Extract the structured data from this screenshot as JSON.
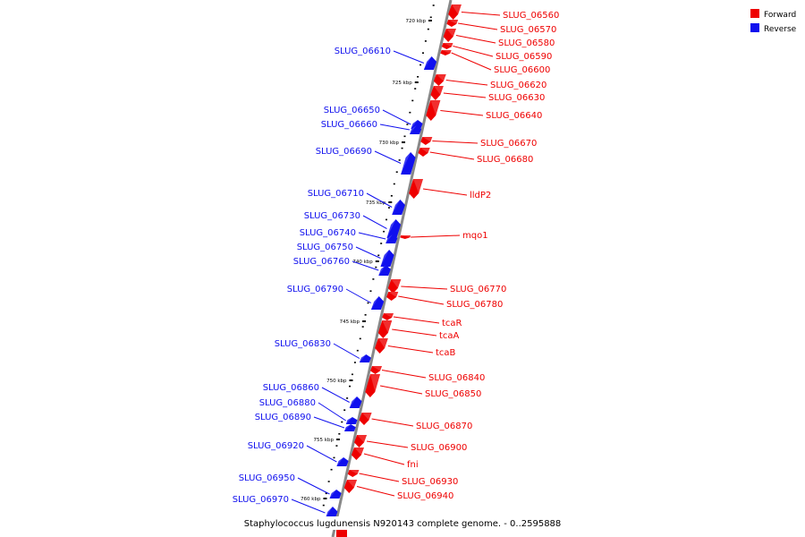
{
  "legend": [
    {
      "label": "Forward",
      "color": "#ee0000"
    },
    {
      "label": "Reverse",
      "color": "#1010ee"
    }
  ],
  "caption": "Staphylococcus lugdunensis N920143 complete genome. - 0..2595888",
  "colors": {
    "forward": "#ee0000",
    "reverse": "#1010ee",
    "backbone": "#888888"
  },
  "ticks": [
    "720 kbp",
    "725 kbp",
    "730 kbp",
    "735 kbp",
    "740 kbp",
    "745 kbp",
    "750 kbp",
    "755 kbp",
    "760 kbp"
  ],
  "genes": [
    {
      "name": "SLUG_06560",
      "strand": "forward"
    },
    {
      "name": "SLUG_06570",
      "strand": "forward"
    },
    {
      "name": "SLUG_06580",
      "strand": "forward"
    },
    {
      "name": "SLUG_06590",
      "strand": "forward"
    },
    {
      "name": "SLUG_06600",
      "strand": "forward"
    },
    {
      "name": "SLUG_06610",
      "strand": "reverse"
    },
    {
      "name": "SLUG_06620",
      "strand": "forward"
    },
    {
      "name": "SLUG_06630",
      "strand": "forward"
    },
    {
      "name": "SLUG_06640",
      "strand": "forward"
    },
    {
      "name": "SLUG_06650",
      "strand": "reverse"
    },
    {
      "name": "SLUG_06660",
      "strand": "reverse"
    },
    {
      "name": "SLUG_06670",
      "strand": "forward"
    },
    {
      "name": "SLUG_06680",
      "strand": "forward"
    },
    {
      "name": "SLUG_06690",
      "strand": "reverse"
    },
    {
      "name": "lldP2",
      "strand": "forward"
    },
    {
      "name": "SLUG_06710",
      "strand": "reverse"
    },
    {
      "name": "SLUG_06730",
      "strand": "reverse"
    },
    {
      "name": "mqo1",
      "strand": "forward"
    },
    {
      "name": "SLUG_06740",
      "strand": "reverse"
    },
    {
      "name": "SLUG_06750",
      "strand": "reverse"
    },
    {
      "name": "SLUG_06760",
      "strand": "reverse"
    },
    {
      "name": "SLUG_06770",
      "strand": "forward"
    },
    {
      "name": "SLUG_06790",
      "strand": "reverse"
    },
    {
      "name": "SLUG_06780",
      "strand": "forward"
    },
    {
      "name": "tcaR",
      "strand": "forward"
    },
    {
      "name": "tcaA",
      "strand": "forward"
    },
    {
      "name": "SLUG_06830",
      "strand": "reverse"
    },
    {
      "name": "tcaB",
      "strand": "forward"
    },
    {
      "name": "SLUG_06840",
      "strand": "forward"
    },
    {
      "name": "SLUG_06860",
      "strand": "reverse"
    },
    {
      "name": "SLUG_06850",
      "strand": "forward"
    },
    {
      "name": "SLUG_06880",
      "strand": "reverse"
    },
    {
      "name": "SLUG_06890",
      "strand": "reverse"
    },
    {
      "name": "SLUG_06870",
      "strand": "forward"
    },
    {
      "name": "SLUG_06920",
      "strand": "reverse"
    },
    {
      "name": "SLUG_06900",
      "strand": "forward"
    },
    {
      "name": "fni",
      "strand": "forward"
    },
    {
      "name": "SLUG_06930",
      "strand": "forward"
    },
    {
      "name": "SLUG_06950",
      "strand": "reverse"
    },
    {
      "name": "SLUG_06940",
      "strand": "forward"
    },
    {
      "name": "SLUG_06970",
      "strand": "reverse"
    }
  ]
}
